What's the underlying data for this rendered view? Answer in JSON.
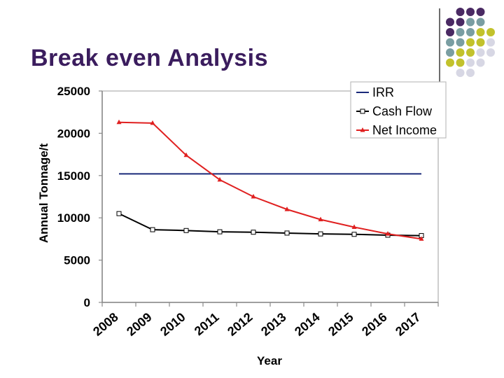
{
  "slide": {
    "title": "Break even Analysis"
  },
  "decor": {
    "dot_colors": [
      "#4a2a63",
      "#7a9ea2",
      "#c2c22c",
      "#d7d7e4"
    ]
  },
  "chart_data": {
    "type": "line",
    "title": "",
    "xlabel": "Year",
    "ylabel": "Annual Tonnage/t",
    "categories": [
      "2008",
      "2009",
      "2010",
      "2011",
      "2012",
      "2013",
      "2014",
      "2015",
      "2016",
      "2017"
    ],
    "ylim": [
      0,
      25000
    ],
    "yticks": [
      0,
      5000,
      10000,
      15000,
      20000,
      25000
    ],
    "grid": false,
    "legend_position": "top-right",
    "series": [
      {
        "name": "IRR",
        "color": "#1a2a7a",
        "marker": "none",
        "values": [
          15200,
          15200,
          15200,
          15200,
          15200,
          15200,
          15200,
          15200,
          15200,
          15200
        ]
      },
      {
        "name": "Cash Flow",
        "color": "#000000",
        "marker": "square",
        "values": [
          10500,
          8600,
          8500,
          8350,
          8300,
          8200,
          8100,
          8050,
          7950,
          7900
        ]
      },
      {
        "name": "Net Income",
        "color": "#e02020",
        "marker": "triangle",
        "values": [
          21300,
          21200,
          17400,
          14500,
          12500,
          11000,
          9800,
          8900,
          8100,
          7500
        ]
      }
    ]
  }
}
